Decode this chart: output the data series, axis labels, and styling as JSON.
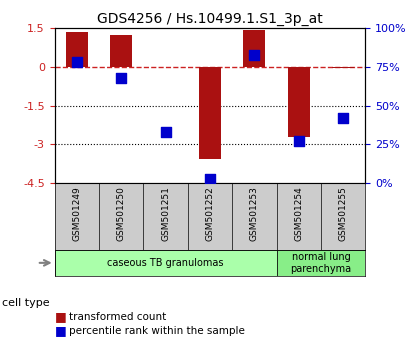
{
  "title": "GDS4256 / Hs.10499.1.S1_3p_at",
  "samples": [
    "GSM501249",
    "GSM501250",
    "GSM501251",
    "GSM501252",
    "GSM501253",
    "GSM501254",
    "GSM501255"
  ],
  "transformed_counts": [
    1.35,
    1.25,
    0.0,
    -3.55,
    1.42,
    -2.7,
    -0.05
  ],
  "percentile_ranks": [
    78,
    68,
    33,
    3,
    83,
    27,
    42
  ],
  "ylim_left": [
    -4.5,
    1.5
  ],
  "ylim_right": [
    0,
    100
  ],
  "bar_color": "#aa1111",
  "dot_color": "#0000cc",
  "cell_types": [
    {
      "label": "caseous TB granulomas",
      "samples": [
        0,
        1,
        2,
        3,
        4
      ],
      "color": "#aaffaa"
    },
    {
      "label": "normal lung\nparenchyma",
      "samples": [
        5,
        6
      ],
      "color": "#88ee88"
    }
  ],
  "cell_type_label": "cell type",
  "legend_items": [
    {
      "label": "transformed count",
      "color": "#aa1111"
    },
    {
      "label": "percentile rank within the sample",
      "color": "#0000cc"
    }
  ],
  "bar_width": 0.5,
  "dot_size": 55
}
